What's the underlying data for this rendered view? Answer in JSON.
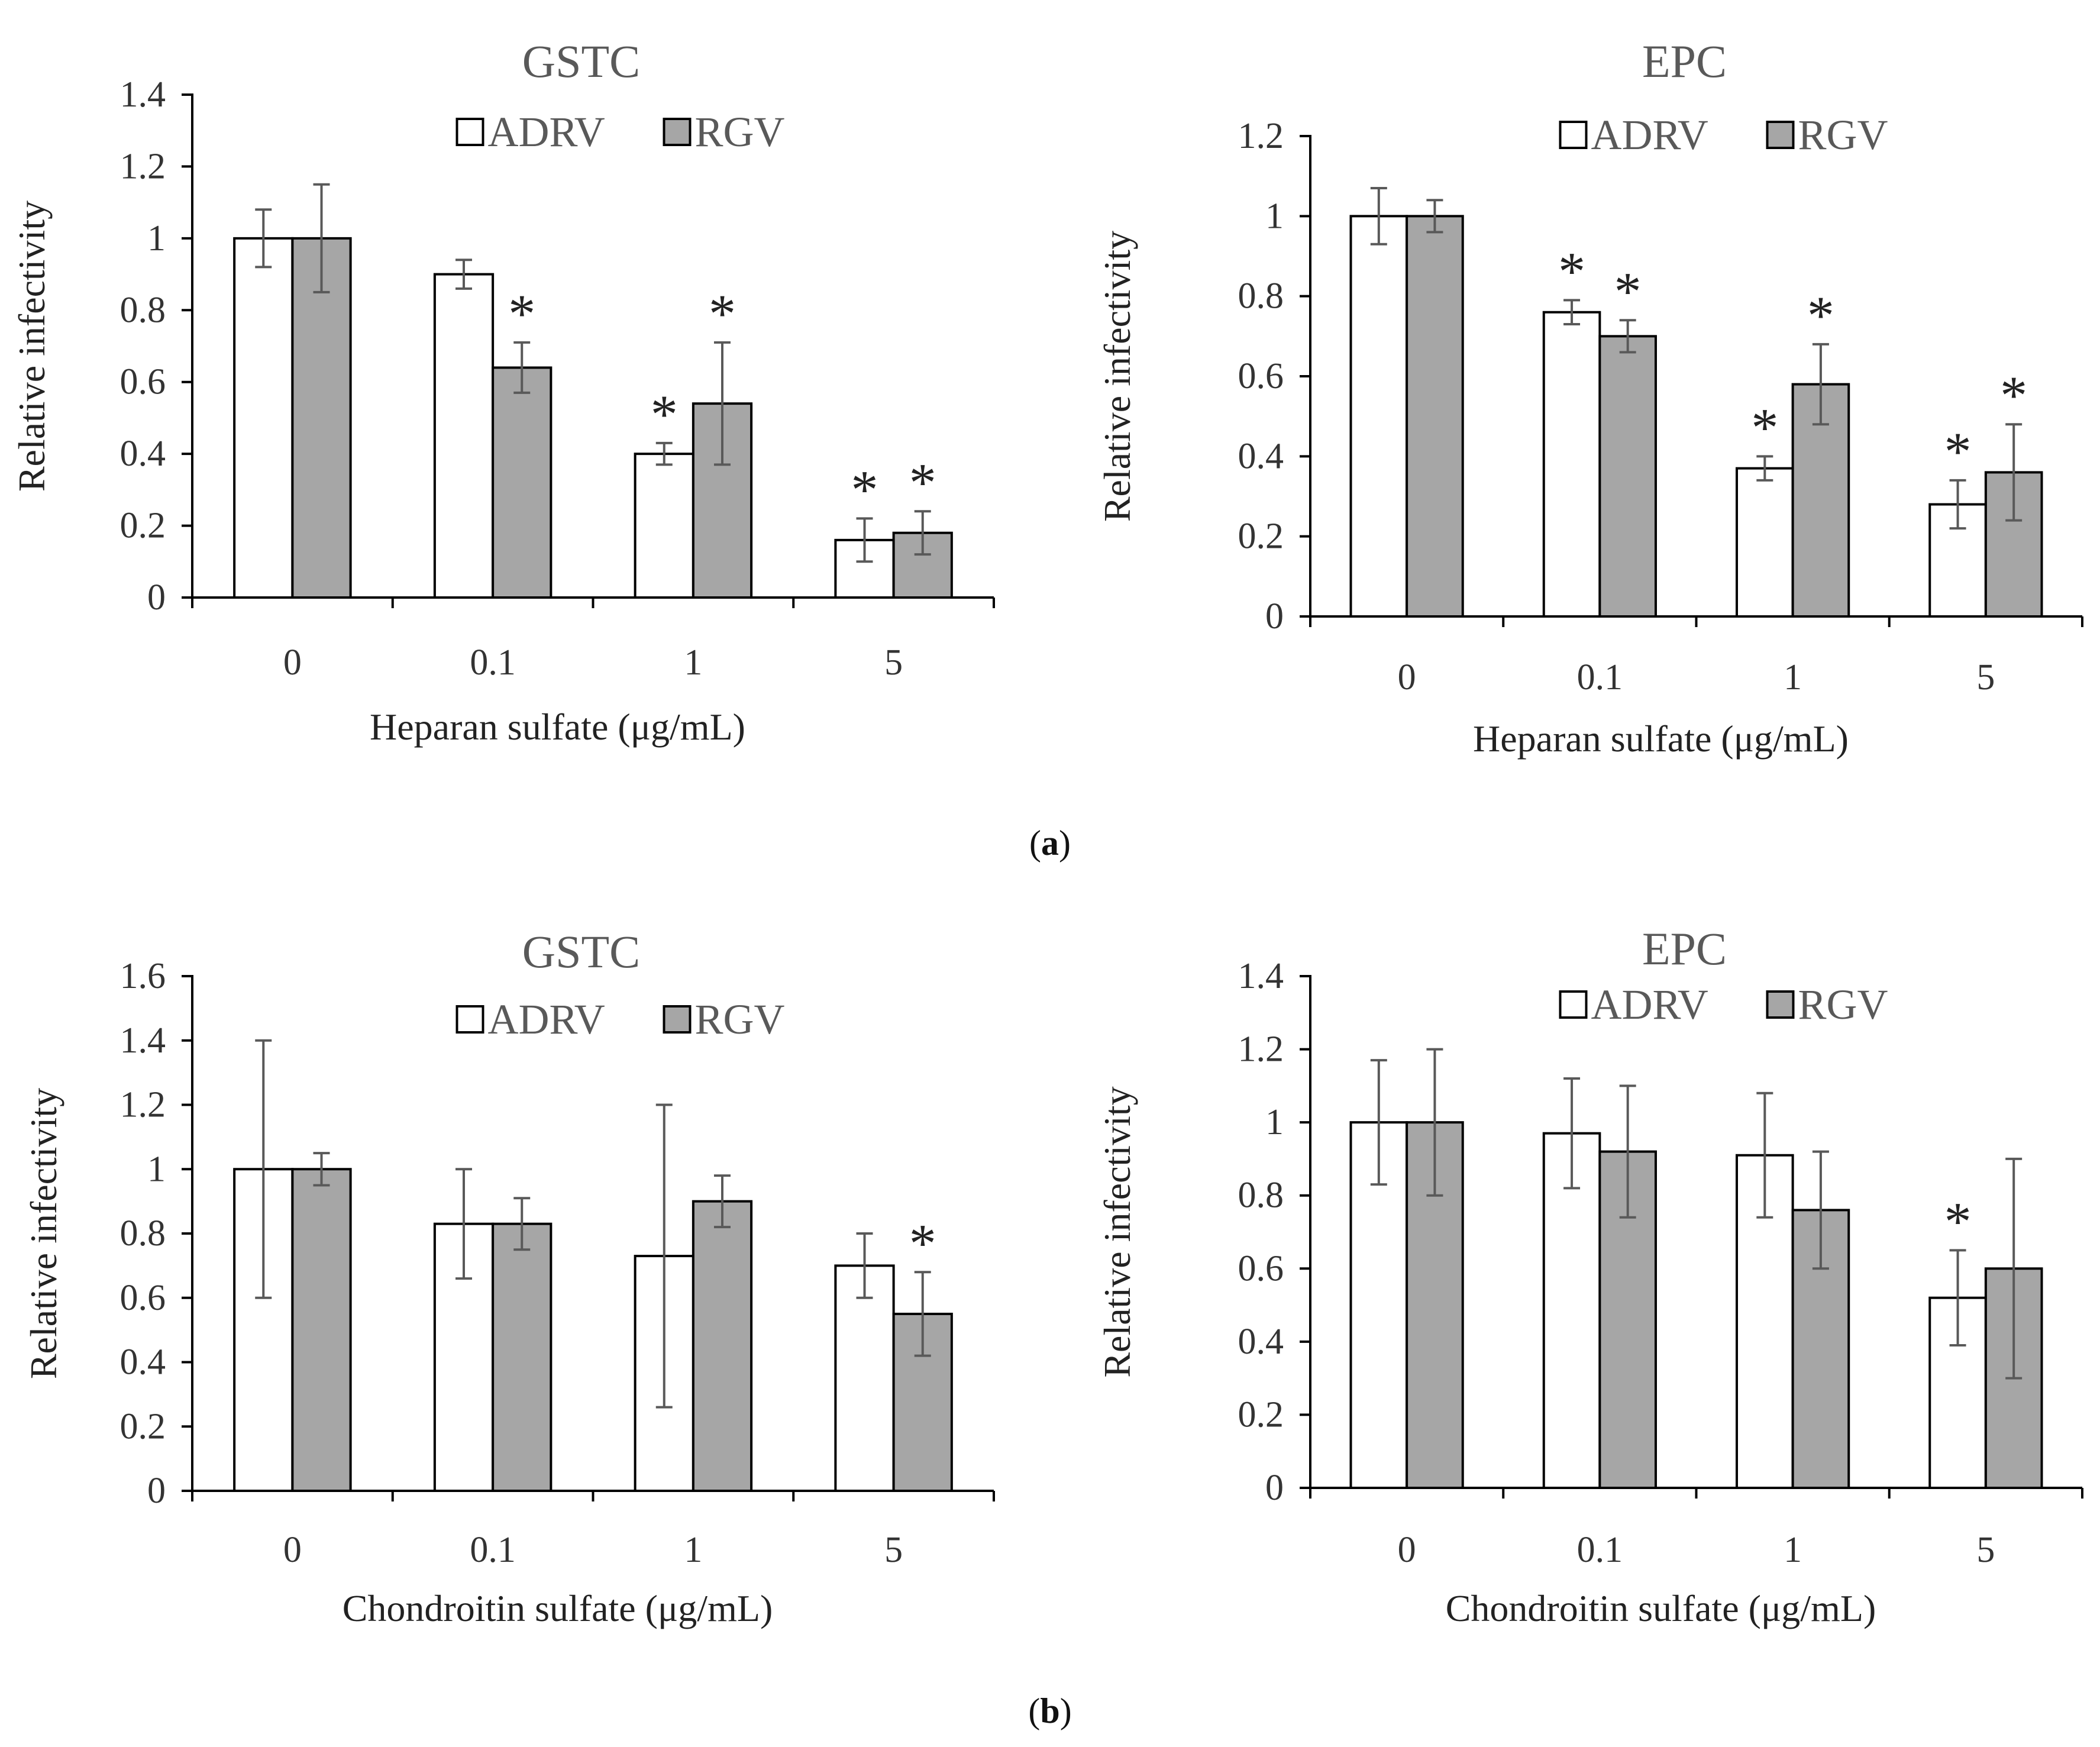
{
  "figure": {
    "panel_labels": [
      {
        "open": "(",
        "letter": "a",
        "close": ")"
      },
      {
        "open": "(",
        "letter": "b",
        "close": ")"
      }
    ]
  },
  "colors": {
    "adrv_fill": "#ffffff",
    "rgv_fill": "#a6a6a6",
    "bar_stroke": "#000000",
    "error_bar": "#595959",
    "axis": "#000000"
  },
  "chart_data": [
    {
      "type": "bar",
      "panel": "a",
      "title": "GSTC",
      "xlabel": "Heparan sulfate (μg/mL)",
      "ylabel": "Relative infectivity",
      "categories": [
        "0",
        "0.1",
        "1",
        "5"
      ],
      "ylim": [
        0,
        1.4
      ],
      "yticks": [
        0,
        0.2,
        0.4,
        0.6,
        0.8,
        1,
        1.2,
        1.4
      ],
      "ytick_labels": [
        "0",
        "0.2",
        "0.4",
        "0.6",
        "0.8",
        "1",
        "1.2",
        "1.4"
      ],
      "legend": {
        "placement": "top-center",
        "entries": [
          "ADRV",
          "RGV"
        ]
      },
      "series": [
        {
          "name": "ADRV",
          "values": [
            1.0,
            0.9,
            0.4,
            0.16
          ],
          "errors": [
            0.08,
            0.04,
            0.03,
            0.06
          ],
          "significant": [
            false,
            false,
            true,
            true
          ]
        },
        {
          "name": "RGV",
          "values": [
            1.0,
            0.64,
            0.54,
            0.18
          ],
          "errors": [
            0.15,
            0.07,
            0.17,
            0.06
          ],
          "significant": [
            false,
            true,
            true,
            true
          ]
        }
      ],
      "significance_marker": "*"
    },
    {
      "type": "bar",
      "panel": "a",
      "title": "EPC",
      "xlabel": "Heparan sulfate (μg/mL)",
      "ylabel": "Relative infectivity",
      "categories": [
        "0",
        "0.1",
        "1",
        "5"
      ],
      "ylim": [
        0,
        1.2
      ],
      "yticks": [
        0,
        0.2,
        0.4,
        0.6,
        0.8,
        1,
        1.2
      ],
      "ytick_labels": [
        "0",
        "0.2",
        "0.4",
        "0.6",
        "0.8",
        "1",
        "1.2"
      ],
      "legend": {
        "placement": "top-center",
        "entries": [
          "ADRV",
          "RGV"
        ]
      },
      "series": [
        {
          "name": "ADRV",
          "values": [
            1.0,
            0.76,
            0.37,
            0.28
          ],
          "errors": [
            0.07,
            0.03,
            0.03,
            0.06
          ],
          "significant": [
            false,
            true,
            true,
            true
          ]
        },
        {
          "name": "RGV",
          "values": [
            1.0,
            0.7,
            0.58,
            0.36
          ],
          "errors": [
            0.04,
            0.04,
            0.1,
            0.12
          ],
          "significant": [
            false,
            true,
            true,
            true
          ]
        }
      ],
      "significance_marker": "*"
    },
    {
      "type": "bar",
      "panel": "b",
      "title": "GSTC",
      "xlabel": "Chondroitin sulfate (μg/mL)",
      "ylabel": "Relative infectivity",
      "categories": [
        "0",
        "0.1",
        "1",
        "5"
      ],
      "ylim": [
        0,
        1.6
      ],
      "yticks": [
        0,
        0.2,
        0.4,
        0.6,
        0.8,
        1,
        1.2,
        1.4,
        1.6
      ],
      "ytick_labels": [
        "0",
        "0.2",
        "0.4",
        "0.6",
        "0.8",
        "1",
        "1.2",
        "1.4",
        "1.6"
      ],
      "legend": {
        "placement": "top-center",
        "entries": [
          "ADRV",
          "RGV"
        ]
      },
      "series": [
        {
          "name": "ADRV",
          "values": [
            1.0,
            0.83,
            0.73,
            0.7
          ],
          "errors": [
            0.4,
            0.17,
            0.47,
            0.1
          ],
          "significant": [
            false,
            false,
            false,
            false
          ]
        },
        {
          "name": "RGV",
          "values": [
            1.0,
            0.83,
            0.9,
            0.55
          ],
          "errors": [
            0.05,
            0.08,
            0.08,
            0.13
          ],
          "significant": [
            false,
            false,
            false,
            true
          ]
        }
      ],
      "significance_marker": "*"
    },
    {
      "type": "bar",
      "panel": "b",
      "title": "EPC",
      "xlabel": "Chondroitin sulfate (μg/mL)",
      "ylabel": "Relative infectivity",
      "categories": [
        "0",
        "0.1",
        "1",
        "5"
      ],
      "ylim": [
        0,
        1.4
      ],
      "yticks": [
        0,
        0.2,
        0.4,
        0.6,
        0.8,
        1,
        1.2,
        1.4
      ],
      "ytick_labels": [
        "0",
        "0.2",
        "0.4",
        "0.6",
        "0.8",
        "1",
        "1.2",
        "1.4"
      ],
      "legend": {
        "placement": "top-center",
        "entries": [
          "ADRV",
          "RGV"
        ]
      },
      "series": [
        {
          "name": "ADRV",
          "values": [
            1.0,
            0.97,
            0.91,
            0.52
          ],
          "errors": [
            0.17,
            0.15,
            0.17,
            0.13
          ],
          "significant": [
            false,
            false,
            false,
            true
          ]
        },
        {
          "name": "RGV",
          "values": [
            1.0,
            0.92,
            0.76,
            0.6
          ],
          "errors": [
            0.2,
            0.18,
            0.16,
            0.3
          ],
          "significant": [
            false,
            false,
            false,
            false
          ]
        }
      ],
      "significance_marker": "*"
    }
  ]
}
